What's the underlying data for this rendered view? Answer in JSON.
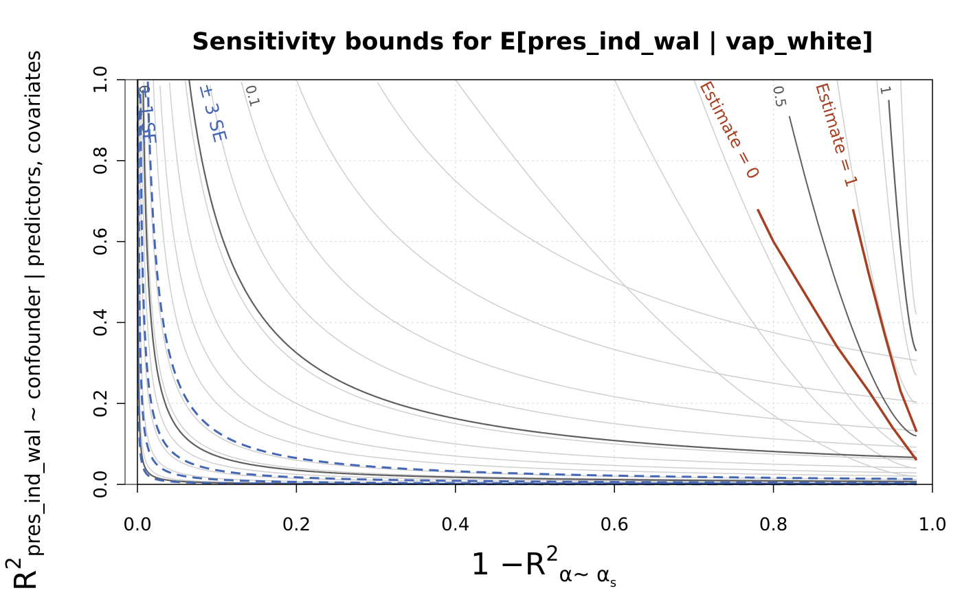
{
  "chart_data": {
    "type": "line",
    "title": "Sensitivity bounds for E[pres_ind_wal | vap_white]",
    "xlabel": {
      "prefix": "1 −R",
      "sup": "2",
      "sub": "α~ α",
      "subsub": "s"
    },
    "ylabel": {
      "main": "R",
      "sup": "2",
      "sub": "pres_ind_wal ~ confounder | predictors, covariates"
    },
    "xlim": [
      0,
      1
    ],
    "ylim": [
      0,
      1
    ],
    "x_ticks": [
      "0.0",
      "0.2",
      "0.4",
      "0.6",
      "0.8",
      "1.0"
    ],
    "y_ticks": [
      "0.0",
      "0.2",
      "0.4",
      "0.6",
      "0.8",
      "1.0"
    ],
    "grid": true,
    "estimate_contours": [
      {
        "label": "Estimate = 0",
        "color": "#a64023",
        "points": [
          [
            0.78,
            0.68
          ],
          [
            0.8,
            0.6
          ],
          [
            0.84,
            0.47
          ],
          [
            0.88,
            0.34
          ],
          [
            0.92,
            0.23
          ],
          [
            0.95,
            0.14
          ],
          [
            0.98,
            0.06
          ]
        ]
      },
      {
        "label": "Estimate = 1",
        "color": "#a64023",
        "points": [
          [
            0.9,
            0.68
          ],
          [
            0.92,
            0.52
          ],
          [
            0.94,
            0.37
          ],
          [
            0.96,
            0.23
          ],
          [
            0.98,
            0.13
          ]
        ]
      }
    ],
    "se_contours": [
      {
        "label": "± 1 SE",
        "color": "#4466b3",
        "style": "dashed"
      },
      {
        "label": "± 3 SE",
        "color": "#4466b3",
        "style": "dashed"
      }
    ],
    "bias_contour_labels": [
      {
        "label": "0.1"
      },
      {
        "label": "0.5"
      },
      {
        "label": "1"
      },
      {
        "label": "0"
      }
    ]
  }
}
